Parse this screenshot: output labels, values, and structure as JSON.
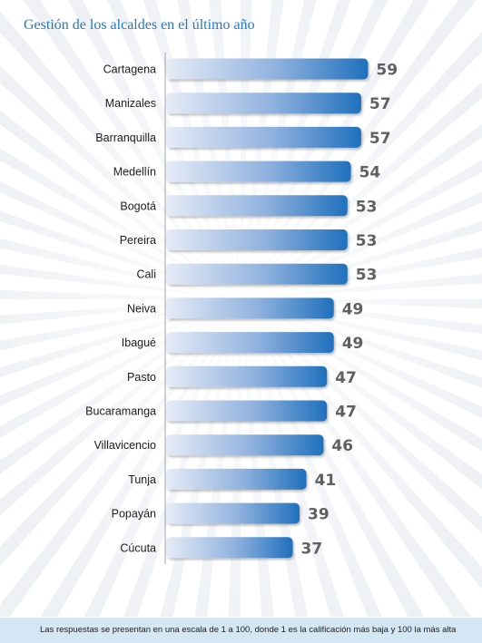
{
  "chart_data": {
    "type": "bar",
    "orientation": "horizontal",
    "title": "Gestión de los alcaldes en el último año",
    "categories": [
      "Cartagena",
      "Manizales",
      "Barranquilla",
      "Medellín",
      "Bogotá",
      "Pereira",
      "Cali",
      "Neiva",
      "Ibagué",
      "Pasto",
      "Bucaramanga",
      "Villavicencio",
      "Tunja",
      "Popayán",
      "Cúcuta"
    ],
    "values": [
      59,
      57,
      57,
      54,
      53,
      53,
      53,
      49,
      49,
      47,
      47,
      46,
      41,
      39,
      37
    ],
    "data_labels": [
      "59",
      "57",
      "57",
      "54",
      "53",
      "53",
      "53",
      "49",
      "49",
      "47",
      "47",
      "46",
      "41",
      "39",
      "37"
    ],
    "xlim": [
      0,
      100
    ],
    "grid": false,
    "legend": "none",
    "colors": {
      "bar_start": "#e6ecf7",
      "bar_end": "#1f70bd",
      "axis": "#9ea3a8",
      "value_text": "#5f6062"
    }
  },
  "footer": {
    "note": "Las respuestas se presentan en una escala de 1 a 100, donde 1 es la calificación más baja y 100 la más alta"
  }
}
